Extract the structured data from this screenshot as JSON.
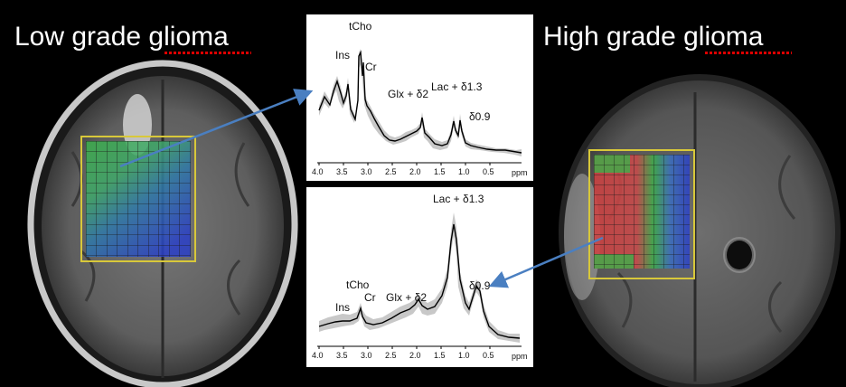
{
  "titles": {
    "left": "Low grade glioma",
    "right": "High grade glioma"
  },
  "spectrum_top": {
    "peaks": {
      "ins": "Ins",
      "tcho": "tCho",
      "cr": "Cr",
      "glx": "Glx + δ2",
      "lac": "Lac + δ1.3",
      "d09": "δ0.9"
    },
    "x_ticks": [
      "4.0",
      "3.5",
      "3.0",
      "2.5",
      "2.0",
      "1.5",
      "1.0",
      "0.5"
    ],
    "x_unit": "ppm"
  },
  "spectrum_bottom": {
    "peaks": {
      "ins": "Ins",
      "tcho": "tCho",
      "cr": "Cr",
      "glx": "Glx + δ2",
      "lac": "Lac + δ1.3",
      "d09": "δ0.9"
    },
    "x_ticks": [
      "4.0",
      "3.5",
      "3.0",
      "2.5",
      "2.0",
      "1.5",
      "1.0",
      "0.5"
    ],
    "x_unit": "ppm"
  },
  "colors": {
    "background": "#000000",
    "roi_box": "#d8c83a",
    "arrow": "#4a7fc1",
    "grid_green": "#3cb04a",
    "grid_blue": "#2a3fc8",
    "grid_red": "#d04040"
  }
}
